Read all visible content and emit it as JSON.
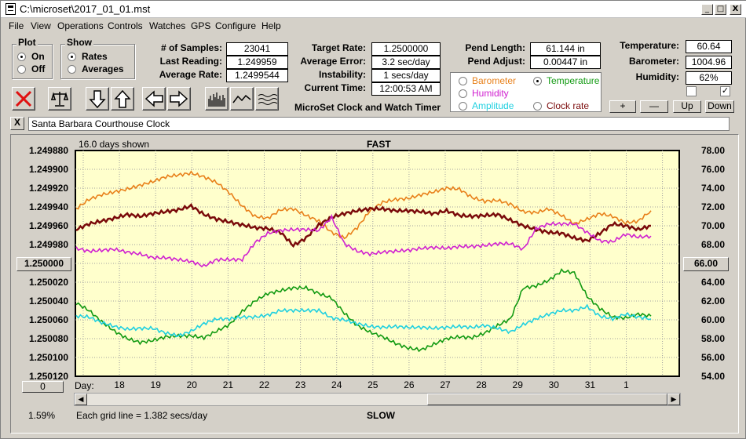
{
  "window": {
    "title": "C:\\microset\\2017_01_01.mst",
    "min": "_",
    "max": "□",
    "close": "X"
  },
  "menu": [
    "File",
    "View",
    "Operations",
    "Controls",
    "Watches",
    "GPS",
    "Configure",
    "Help"
  ],
  "plot_group": {
    "title": "Plot",
    "options": [
      "On",
      "Off"
    ],
    "selected": "On"
  },
  "show_group": {
    "title": "Show",
    "options": [
      "Rates",
      "Averages"
    ],
    "selected": "Rates"
  },
  "stats": {
    "samples_label": "# of Samples:",
    "samples": "23041",
    "last_label": "Last Reading:",
    "last": "1.249959",
    "avg_label": "Average Rate:",
    "avg": "1.2499544",
    "target_label": "Target Rate:",
    "target": "1.2500000",
    "avgerr_label": "Average Error:",
    "avgerr": "3.2 sec/day",
    "instab_label": "Instability:",
    "instab": "1 secs/day",
    "time_label": "Current Time:",
    "time": "12:00:53 AM",
    "pendlen_label": "Pend Length:",
    "pendlen": "61.144 in",
    "pendadj_label": "Pend Adjust:",
    "pendadj": "0.00447 in",
    "temp_label": "Temperature:",
    "temp": "60.64",
    "baro_label": "Barometer:",
    "baro": "1004.96",
    "hum_label": "Humidity:",
    "hum": "62%"
  },
  "app_name": "MicroSet Clock and Watch Timer",
  "sensor_group": {
    "options": [
      {
        "label": "Barometer",
        "color": "#e8801a",
        "selected": false
      },
      {
        "label": "Temperature",
        "color": "#129a12",
        "selected": true
      },
      {
        "label": "Humidity",
        "color": "#d020d0",
        "selected": false
      },
      {
        "label": "Clock rate",
        "color": "#7a0a0a",
        "selected": false
      },
      {
        "label": "Amplitude",
        "color": "#20d0e0",
        "selected": false
      }
    ]
  },
  "checkboxes": {
    "left": "",
    "right": "✓"
  },
  "adjust_buttons": {
    "plus": "+",
    "minus": "—",
    "up": "Up",
    "down": "Down"
  },
  "clock_name": "Santa Barbara Courthouse Clock",
  "clear_btn": "X",
  "chart_data": {
    "type": "line",
    "title_top": "FAST",
    "title_bottom": "SLOW",
    "days_shown": "16.0 days shown",
    "grid_note": "Each grid line = 1.382 secs/day",
    "percent": "1.59%",
    "left_axis": {
      "ticks": [
        "1.249880",
        "1.249900",
        "1.249920",
        "1.249940",
        "1.249960",
        "1.249980",
        "1.250000",
        "1.250020",
        "1.250040",
        "1.250060",
        "1.250080",
        "1.250100",
        "1.250120"
      ],
      "ylim": [
        1.24988,
        1.25012
      ]
    },
    "right_axis": {
      "ticks": [
        "78.00",
        "76.00",
        "74.00",
        "72.00",
        "70.00",
        "68.00",
        "66.00",
        "64.00",
        "62.00",
        "60.00",
        "58.00",
        "56.00",
        "54.00"
      ],
      "ylim": [
        78,
        54
      ]
    },
    "left_center_btn": "1.250000",
    "right_center_btn": "66.00",
    "bottom_left_btn": "0",
    "day_label": "Day:",
    "days": [
      "18",
      "19",
      "20",
      "21",
      "22",
      "23",
      "24",
      "25",
      "26",
      "27",
      "28",
      "29",
      "30",
      "31",
      "1"
    ],
    "grid": true,
    "series": [
      {
        "name": "Barometer",
        "color": "#e8801a",
        "values": [
          71.8,
          72.8,
          73.3,
          73.6,
          73.9,
          74.3,
          74.7,
          75.2,
          75.4,
          75.6,
          75.2,
          74.6,
          73.5,
          72.1,
          71.0,
          70.8,
          71.7,
          71.8,
          71.1,
          70.5,
          69.3,
          68.7,
          69.8,
          71.6,
          72.5,
          72.8,
          72.9,
          73.3,
          73.6,
          74.0,
          73.9,
          73.0,
          72.6,
          72.7,
          72.3,
          71.5,
          71.4,
          71.8,
          71.1,
          70.2,
          70.7,
          71.3,
          71.0,
          70.3,
          70.5,
          71.6
        ]
      },
      {
        "name": "Clock rate",
        "color": "#7a0a0a",
        "values": [
          69.6,
          70.2,
          70.5,
          70.8,
          71.2,
          71.0,
          71.3,
          71.5,
          71.7,
          72.1,
          71.2,
          70.7,
          70.4,
          70.1,
          69.8,
          69.7,
          69.3,
          67.9,
          68.7,
          70.1,
          70.9,
          71.3,
          71.6,
          71.8,
          71.8,
          71.6,
          71.6,
          71.5,
          71.3,
          71.6,
          71.1,
          71.0,
          71.1,
          71.2,
          70.6,
          70.0,
          69.6,
          69.3,
          69.2,
          68.7,
          68.4,
          69.2,
          70.2,
          70.0,
          69.6,
          70.0
        ]
      },
      {
        "name": "Humidity",
        "color": "#d020d0",
        "values": [
          67.6,
          67.3,
          67.4,
          67.5,
          67.2,
          67.0,
          66.6,
          66.6,
          66.4,
          66.2,
          65.7,
          66.4,
          66.4,
          66.4,
          68.2,
          69.2,
          69.5,
          69.6,
          69.6,
          69.5,
          70.9,
          68.1,
          67.3,
          67.0,
          67.2,
          67.3,
          67.4,
          67.6,
          67.7,
          67.6,
          67.8,
          67.8,
          67.9,
          68.1,
          68.1,
          67.5,
          69.7,
          70.2,
          70.2,
          70.2,
          69.3,
          68.4,
          68.3,
          69.1,
          68.8,
          68.9
        ]
      },
      {
        "name": "Temperature",
        "color": "#129a12",
        "values": [
          61.8,
          61.0,
          59.8,
          58.8,
          58.0,
          57.6,
          57.8,
          58.2,
          58.3,
          58.3,
          58.1,
          58.8,
          59.5,
          60.9,
          62.0,
          62.8,
          63.1,
          63.4,
          63.4,
          62.8,
          62.3,
          60.7,
          59.4,
          58.7,
          58.2,
          57.5,
          57.0,
          56.8,
          57.4,
          58.0,
          58.2,
          58.1,
          58.6,
          59.4,
          60.1,
          63.4,
          63.6,
          64.2,
          65.2,
          65.0,
          62.5,
          61.2,
          60.3,
          60.2,
          60.6,
          60.4
        ]
      },
      {
        "name": "Amplitude",
        "color": "#20d0e0",
        "values": [
          60.4,
          60.3,
          59.7,
          59.3,
          59.0,
          59.1,
          59.1,
          58.6,
          58.3,
          58.8,
          59.6,
          60.1,
          60.1,
          60.3,
          60.3,
          60.5,
          61.0,
          61.0,
          61.0,
          61.0,
          60.2,
          60.0,
          59.6,
          59.3,
          59.2,
          59.3,
          59.2,
          59.2,
          59.1,
          59.2,
          59.3,
          59.2,
          59.4,
          59.1,
          58.7,
          59.5,
          60.1,
          60.6,
          61.0,
          61.0,
          61.4,
          60.4,
          60.1,
          60.6,
          60.3,
          60.1
        ]
      }
    ]
  }
}
